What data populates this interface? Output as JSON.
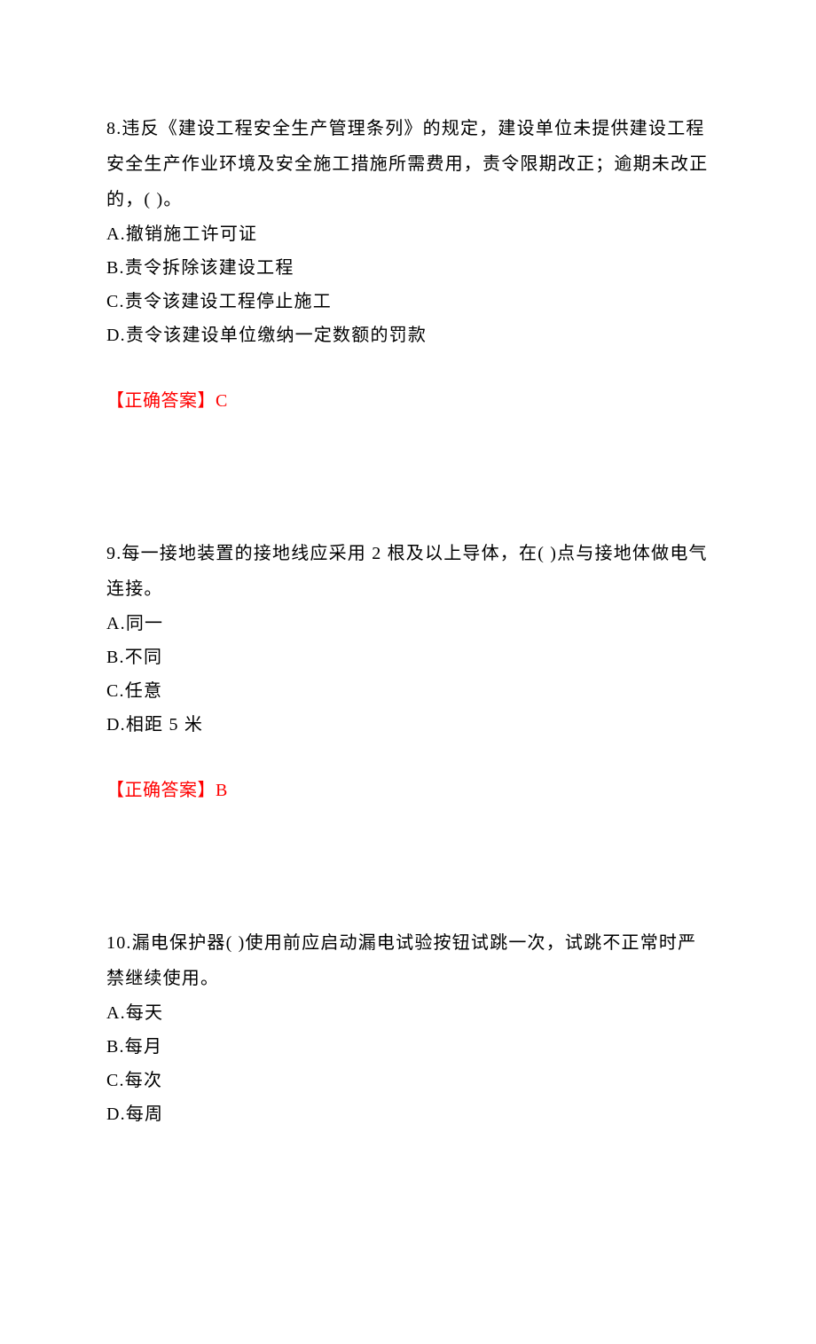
{
  "document": {
    "background_color": "#ffffff",
    "text_color": "#000000",
    "answer_color": "#ff0000",
    "font_family": "SimSun",
    "font_size_pt": 15,
    "line_height": 1.9
  },
  "questions": [
    {
      "number": "8",
      "stem": "8.违反《建设工程安全生产管理条列》的规定，建设单位未提供建设工程安全生产作业环境及安全施工措施所需费用，责令限期改正；逾期未改正的，( )。",
      "options": [
        "A.撤销施工许可证",
        "B.责令拆除该建设工程",
        "C.责令该建设工程停止施工",
        "D.责令该建设单位缴纳一定数额的罚款"
      ],
      "answer_label": "【正确答案】",
      "answer_value": "C"
    },
    {
      "number": "9",
      "stem": "9.每一接地装置的接地线应采用 2 根及以上导体，在(    )点与接地体做电气连接。",
      "options": [
        "A.同一",
        "B.不同",
        "C.任意",
        "D.相距 5 米"
      ],
      "answer_label": "【正确答案】",
      "answer_value": "B"
    },
    {
      "number": "10",
      "stem": "10.漏电保护器(    )使用前应启动漏电试验按钮试跳一次，试跳不正常时严禁继续使用。",
      "options": [
        "A.每天",
        "B.每月",
        "C.每次",
        "D.每周"
      ],
      "answer_label": null,
      "answer_value": null
    }
  ]
}
